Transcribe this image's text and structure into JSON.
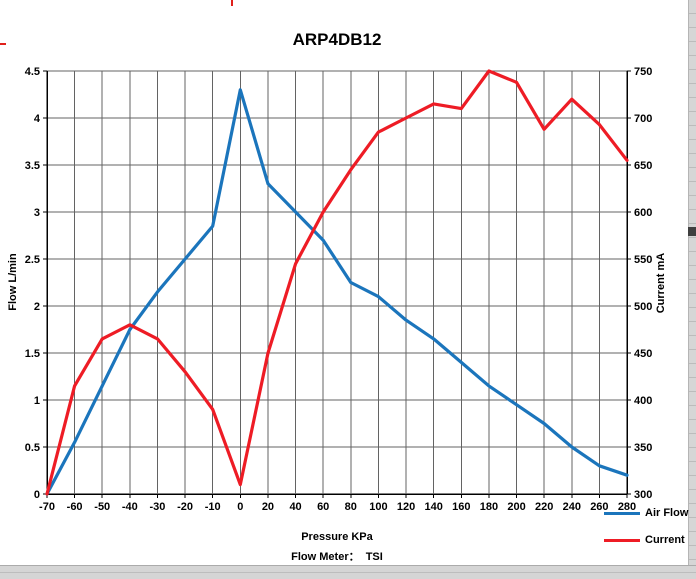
{
  "chart_data": {
    "type": "line",
    "title": "ARP4DB12",
    "categories": [
      -70,
      -60,
      -50,
      -40,
      -30,
      -20,
      -10,
      0,
      20,
      40,
      60,
      80,
      100,
      120,
      140,
      160,
      180,
      200,
      220,
      240,
      260,
      280
    ],
    "series": [
      {
        "name": "Air Flow",
        "axis": "left",
        "color": "#1b75bc",
        "values": [
          0,
          0.55,
          1.15,
          1.75,
          2.15,
          2.5,
          2.85,
          4.3,
          3.3,
          3.0,
          2.7,
          2.25,
          2.1,
          1.85,
          1.65,
          1.4,
          1.15,
          0.95,
          0.75,
          0.5,
          0.3,
          0.2
        ]
      },
      {
        "name": "Current",
        "axis": "right",
        "color": "#ee1c25",
        "values": [
          300,
          415,
          465,
          480,
          465,
          430,
          390,
          310,
          450,
          545,
          600,
          645,
          685,
          700,
          715,
          710,
          750,
          738,
          688,
          720,
          693,
          655
        ]
      }
    ],
    "left_axis": {
      "label": "Flow L/min",
      "min": 0,
      "max": 4.5,
      "step": 0.5
    },
    "right_axis": {
      "label": "Current mA",
      "min": 300,
      "max": 750,
      "step": 50
    },
    "x_axis": {
      "label": "Pressure KPa"
    },
    "subtitle": "Flow Meter：  TSI",
    "grid": true,
    "legend_position": "bottom-right"
  },
  "legend": {
    "airflow_label": "Air Flow",
    "current_label": "Current"
  }
}
